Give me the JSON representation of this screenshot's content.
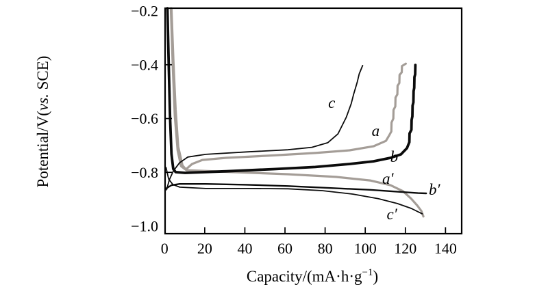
{
  "figure": {
    "background": "#ffffff"
  },
  "chart_data": {
    "type": "line",
    "title": "",
    "xlabel": "Capacity/(mA·h·g−1)",
    "ylabel": "Potential/V(vs. SCE)",
    "xlim": [
      0,
      148
    ],
    "ylim": [
      -1.03,
      -0.19
    ],
    "grid": false,
    "legend": "inline curve labels",
    "colors": {
      "black": "#0b0b0b",
      "gray": "#a49d97"
    },
    "x_axis": {
      "title_main": "Capacity/(mA·h·g",
      "title_sup": "−1",
      "title_close": ")",
      "ticks": [
        "0",
        "20",
        "40",
        "60",
        "80",
        "100",
        "120",
        "140"
      ],
      "tick_values": [
        0,
        20,
        40,
        60,
        80,
        100,
        120,
        140
      ],
      "marked": [
        20,
        40,
        60,
        80,
        100,
        120,
        140
      ]
    },
    "y_axis": {
      "title_pre": "Potential/V(",
      "title_italic": "vs.",
      "title_post": " SCE)",
      "ticks": [
        "−0.2",
        "−0.4",
        "−0.6",
        "−0.8",
        "−1.0"
      ],
      "tick_values": [
        -0.2,
        -0.4,
        -0.6,
        -0.8,
        -1.0
      ],
      "marked": [
        -0.4,
        -0.6,
        -0.8
      ]
    },
    "series": [
      {
        "id": "a",
        "label": "a",
        "color": "#a49d97",
        "width": 3.2,
        "label_at": [
          105.2,
          -0.644
        ],
        "points": [
          [
            3.4,
            -0.19
          ],
          [
            4.4,
            -0.388
          ],
          [
            5.5,
            -0.566
          ],
          [
            6.8,
            -0.705
          ],
          [
            8.9,
            -0.774
          ],
          [
            10.6,
            -0.789
          ],
          [
            13.7,
            -0.769
          ],
          [
            18.8,
            -0.754
          ],
          [
            30.7,
            -0.746
          ],
          [
            54.6,
            -0.737
          ],
          [
            75.1,
            -0.728
          ],
          [
            92.2,
            -0.718
          ],
          [
            104.1,
            -0.703
          ],
          [
            110.3,
            -0.683
          ],
          [
            112.0,
            -0.662
          ],
          [
            113.0,
            -0.648
          ],
          [
            113.1,
            -0.615
          ],
          [
            114.0,
            -0.6
          ],
          [
            114.1,
            -0.568
          ],
          [
            115.0,
            -0.555
          ],
          [
            115.1,
            -0.522
          ],
          [
            116.0,
            -0.51
          ],
          [
            116.1,
            -0.478
          ],
          [
            117.0,
            -0.468
          ],
          [
            117.1,
            -0.438
          ],
          [
            118.2,
            -0.428
          ],
          [
            118.3,
            -0.405
          ],
          [
            120.2,
            -0.396
          ]
        ]
      },
      {
        "id": "a-prime",
        "label": "a′",
        "color": "#a49d97",
        "width": 3.2,
        "label_at": [
          111.3,
          -0.822
        ],
        "points": [
          [
            3.1,
            -0.19
          ],
          [
            4.1,
            -0.413
          ],
          [
            5.1,
            -0.591
          ],
          [
            6.5,
            -0.718
          ],
          [
            8.2,
            -0.777
          ],
          [
            10.9,
            -0.792
          ],
          [
            17.1,
            -0.794
          ],
          [
            34.1,
            -0.799
          ],
          [
            61.5,
            -0.807
          ],
          [
            85.4,
            -0.817
          ],
          [
            102.4,
            -0.83
          ],
          [
            112.6,
            -0.848
          ],
          [
            118.8,
            -0.87
          ],
          [
            122.9,
            -0.898
          ],
          [
            126.0,
            -0.924
          ],
          [
            128.0,
            -0.944
          ],
          [
            129.0,
            -0.964
          ]
        ]
      },
      {
        "id": "c",
        "label": "c",
        "color": "#0b0b0b",
        "width": 1.8,
        "label_at": [
          83.3,
          -0.54
        ],
        "points": [
          [
            1.0,
            -0.865
          ],
          [
            2.4,
            -0.827
          ],
          [
            4.4,
            -0.794
          ],
          [
            7.5,
            -0.764
          ],
          [
            11.6,
            -0.743
          ],
          [
            20.5,
            -0.733
          ],
          [
            41.0,
            -0.724
          ],
          [
            61.5,
            -0.716
          ],
          [
            73.4,
            -0.707
          ],
          [
            81.3,
            -0.69
          ],
          [
            86.4,
            -0.657
          ],
          [
            90.5,
            -0.596
          ],
          [
            93.0,
            -0.545
          ],
          [
            94.2,
            -0.51
          ],
          [
            96.0,
            -0.465
          ],
          [
            97.0,
            -0.434
          ],
          [
            98.7,
            -0.403
          ]
        ]
      },
      {
        "id": "c-prime",
        "label": "c′",
        "color": "#0b0b0b",
        "width": 1.8,
        "label_at": [
          113.3,
          -0.954
        ],
        "points": [
          [
            0.7,
            -0.782
          ],
          [
            2.0,
            -0.825
          ],
          [
            4.1,
            -0.845
          ],
          [
            7.5,
            -0.855
          ],
          [
            20.5,
            -0.86
          ],
          [
            41.0,
            -0.86
          ],
          [
            61.5,
            -0.861
          ],
          [
            78.5,
            -0.868
          ],
          [
            93.9,
            -0.881
          ],
          [
            106.5,
            -0.898
          ],
          [
            116.0,
            -0.916
          ],
          [
            122.9,
            -0.934
          ],
          [
            127.0,
            -0.949
          ],
          [
            128.4,
            -0.954
          ]
        ]
      },
      {
        "id": "b-prime",
        "label": "b′",
        "color": "#0b0b0b",
        "width": 2.4,
        "label_at": [
          134.5,
          -0.863
        ],
        "points": [
          [
            0.7,
            -0.86
          ],
          [
            3.4,
            -0.848
          ],
          [
            7.5,
            -0.843
          ],
          [
            20.5,
            -0.843
          ],
          [
            41.0,
            -0.846
          ],
          [
            61.5,
            -0.851
          ],
          [
            81.9,
            -0.858
          ],
          [
            102.4,
            -0.865
          ],
          [
            116.0,
            -0.872
          ],
          [
            126.3,
            -0.877
          ],
          [
            130.4,
            -0.878
          ]
        ]
      },
      {
        "id": "b",
        "label": "b",
        "color": "#0b0b0b",
        "width": 3.8,
        "label_at": [
          114.4,
          -0.741
        ],
        "points": [
          [
            1.4,
            -0.19
          ],
          [
            2.0,
            -0.388
          ],
          [
            2.7,
            -0.591
          ],
          [
            3.4,
            -0.731
          ],
          [
            4.3,
            -0.787
          ],
          [
            5.5,
            -0.799
          ],
          [
            10.2,
            -0.802
          ],
          [
            30.7,
            -0.796
          ],
          [
            54.6,
            -0.788
          ],
          [
            75.1,
            -0.78
          ],
          [
            92.2,
            -0.769
          ],
          [
            104.1,
            -0.759
          ],
          [
            112.6,
            -0.746
          ],
          [
            117.8,
            -0.733
          ],
          [
            120.8,
            -0.71
          ],
          [
            122.0,
            -0.688
          ],
          [
            122.1,
            -0.655
          ],
          [
            123.0,
            -0.642
          ],
          [
            123.1,
            -0.605
          ],
          [
            123.5,
            -0.592
          ],
          [
            123.6,
            -0.552
          ],
          [
            124.0,
            -0.54
          ],
          [
            124.1,
            -0.498
          ],
          [
            124.4,
            -0.486
          ],
          [
            124.5,
            -0.446
          ],
          [
            124.9,
            -0.436
          ],
          [
            125.0,
            -0.401
          ]
        ]
      }
    ]
  }
}
